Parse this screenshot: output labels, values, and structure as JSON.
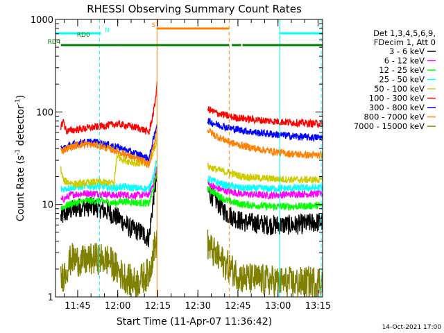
{
  "chart_data": {
    "type": "line",
    "title": "RHESSI Observing Summary Count Rates",
    "xlabel": "Start Time (11-Apr-07 11:36:42)",
    "ylabel": "Count Rate (s⁻¹ detector⁻¹)",
    "ylabel_parts": [
      "Count Rate (s",
      "-1",
      " detector",
      "-1",
      ")"
    ],
    "yscale": "log",
    "ylim": [
      1,
      1000
    ],
    "xlim_minutes": [
      0,
      100
    ],
    "y_ticks": [
      {
        "value": 1,
        "label": "1"
      },
      {
        "value": 10,
        "label": "10"
      },
      {
        "value": 100,
        "label": "100"
      },
      {
        "value": 1000,
        "label": "1000"
      }
    ],
    "x_ticks": [
      {
        "minute": 8.3,
        "label": "11:45"
      },
      {
        "minute": 23.3,
        "label": "12:00"
      },
      {
        "minute": 38.3,
        "label": "12:15"
      },
      {
        "minute": 53.3,
        "label": "12:30"
      },
      {
        "minute": 68.3,
        "label": "12:45"
      },
      {
        "minute": 83.3,
        "label": "13:00"
      },
      {
        "minute": 98.3,
        "label": "13:15"
      }
    ],
    "legend_header": [
      "Det 1,3,4,5,6,9,",
      "FDecim 1, Att 0"
    ],
    "segments": [
      [
        0,
        38
      ],
      [
        57,
        100
      ]
    ],
    "series": [
      {
        "name": "3 - 6 keV",
        "color": "#000000",
        "points": [
          [
            2,
            7.2
          ],
          [
            5,
            8.5
          ],
          [
            10,
            9.5
          ],
          [
            15,
            9.4
          ],
          [
            20,
            8.2
          ],
          [
            24,
            7
          ],
          [
            28,
            5.5
          ],
          [
            32,
            5
          ],
          [
            35,
            4.3
          ],
          [
            37,
            14
          ],
          [
            38,
            20
          ],
          [
            57,
            14
          ],
          [
            60,
            11
          ],
          [
            64,
            8
          ],
          [
            70,
            6.5
          ],
          [
            80,
            6
          ],
          [
            90,
            6
          ],
          [
            100,
            6.5
          ]
        ]
      },
      {
        "name": "6 - 12 keV",
        "color": "#ff00ff",
        "points": [
          [
            2,
            11
          ],
          [
            6,
            12.8
          ],
          [
            12,
            13.2
          ],
          [
            18,
            13
          ],
          [
            22,
            12.5
          ],
          [
            25,
            12.8
          ],
          [
            30,
            12.5
          ],
          [
            35,
            12.8
          ],
          [
            37,
            18
          ],
          [
            38,
            26
          ],
          [
            57,
            17
          ],
          [
            60,
            15
          ],
          [
            64,
            14
          ],
          [
            70,
            13
          ],
          [
            80,
            12.5
          ],
          [
            90,
            13
          ],
          [
            100,
            13
          ]
        ]
      },
      {
        "name": "12 - 25 keV",
        "color": "#00ff00",
        "points": [
          [
            2,
            9.2
          ],
          [
            6,
            10.2
          ],
          [
            12,
            11
          ],
          [
            18,
            10.8
          ],
          [
            22,
            10.3
          ],
          [
            25,
            10.8
          ],
          [
            30,
            10.5
          ],
          [
            35,
            10.2
          ],
          [
            37,
            16
          ],
          [
            38,
            23
          ],
          [
            57,
            15
          ],
          [
            60,
            13
          ],
          [
            64,
            11
          ],
          [
            70,
            10
          ],
          [
            80,
            9.5
          ],
          [
            90,
            9.5
          ],
          [
            100,
            9.8
          ]
        ]
      },
      {
        "name": "25 - 50 keV",
        "color": "#00ffff",
        "points": [
          [
            2,
            14.5
          ],
          [
            6,
            15.3
          ],
          [
            12,
            15.8
          ],
          [
            18,
            15.6
          ],
          [
            22,
            15
          ],
          [
            25,
            15.5
          ],
          [
            30,
            15
          ],
          [
            35,
            14.8
          ],
          [
            37,
            22
          ],
          [
            38,
            30
          ],
          [
            57,
            19
          ],
          [
            60,
            17.5
          ],
          [
            64,
            16
          ],
          [
            70,
            15
          ],
          [
            80,
            14.8
          ],
          [
            90,
            15
          ],
          [
            100,
            15.2
          ]
        ]
      },
      {
        "name": "50 - 100 keV",
        "color": "#cccc00",
        "points": [
          [
            2,
            24
          ],
          [
            3,
            18
          ],
          [
            8,
            16.5
          ],
          [
            15,
            17.5
          ],
          [
            22,
            17
          ],
          [
            23,
            34
          ],
          [
            26,
            30
          ],
          [
            30,
            28
          ],
          [
            35,
            27
          ],
          [
            37,
            40
          ],
          [
            38,
            50
          ],
          [
            57,
            26
          ],
          [
            60,
            24
          ],
          [
            65,
            22
          ],
          [
            70,
            20
          ],
          [
            80,
            19
          ],
          [
            90,
            18.5
          ],
          [
            100,
            18.5
          ]
        ]
      },
      {
        "name": "100 - 300 keV",
        "color": "#ff0000",
        "points": [
          [
            2,
            70
          ],
          [
            3,
            80
          ],
          [
            4,
            62
          ],
          [
            23,
            74
          ],
          [
            28,
            70
          ],
          [
            32,
            66
          ],
          [
            35,
            60
          ],
          [
            37,
            110
          ],
          [
            38,
            195
          ],
          [
            57,
            108
          ],
          [
            60,
            98
          ],
          [
            66,
            88
          ],
          [
            75,
            82
          ],
          [
            85,
            78
          ],
          [
            95,
            75
          ],
          [
            100,
            75
          ]
        ]
      },
      {
        "name": "300 - 800 keV",
        "color": "#0000ff",
        "points": [
          [
            2,
            40
          ],
          [
            6,
            44
          ],
          [
            10,
            47
          ],
          [
            15,
            47
          ],
          [
            20,
            44
          ],
          [
            24,
            41
          ],
          [
            28,
            37
          ],
          [
            32,
            34
          ],
          [
            35,
            31
          ],
          [
            37,
            55
          ],
          [
            38,
            75
          ],
          [
            57,
            80
          ],
          [
            60,
            74
          ],
          [
            66,
            66
          ],
          [
            75,
            60
          ],
          [
            85,
            56
          ],
          [
            95,
            53
          ],
          [
            100,
            53
          ]
        ]
      },
      {
        "name": "800 - 7000 keV",
        "color": "#ff8000",
        "points": [
          [
            2,
            38
          ],
          [
            6,
            42
          ],
          [
            10,
            45
          ],
          [
            15,
            44
          ],
          [
            20,
            40
          ],
          [
            24,
            37
          ],
          [
            28,
            33
          ],
          [
            32,
            30
          ],
          [
            35,
            27
          ],
          [
            37,
            45
          ],
          [
            38,
            65
          ],
          [
            57,
            64
          ],
          [
            60,
            55
          ],
          [
            66,
            46
          ],
          [
            75,
            40
          ],
          [
            85,
            36
          ],
          [
            95,
            34
          ],
          [
            100,
            34
          ]
        ]
      },
      {
        "name": "7000 - 15000 keV",
        "color": "#808000",
        "points": [
          [
            2,
            1.5
          ],
          [
            6,
            2.6
          ],
          [
            10,
            2.4
          ],
          [
            15,
            2.6
          ],
          [
            20,
            2.5
          ],
          [
            25,
            1.7
          ],
          [
            30,
            1.4
          ],
          [
            35,
            1.8
          ],
          [
            37,
            3.5
          ],
          [
            38,
            4
          ],
          [
            57,
            3.7
          ],
          [
            60,
            2.8
          ],
          [
            64,
            2.2
          ],
          [
            70,
            1.6
          ],
          [
            80,
            1.5
          ],
          [
            90,
            1.4
          ],
          [
            100,
            1.5
          ]
        ]
      }
    ],
    "annotations": {
      "bars": [
        {
          "label": "N",
          "color": "#00ffff",
          "segments": [
            [
              0,
              17
            ],
            [
              84,
              100
            ]
          ],
          "label_minute": 18.5,
          "level": 0
        },
        {
          "label": "RD0",
          "color": "#008000",
          "segments": [],
          "label_minute": 8,
          "level": 1
        },
        {
          "label": "RD4",
          "color": "#008000",
          "segments": [
            [
              2,
              23.5
            ],
            [
              23.5,
              65
            ],
            [
              66,
              69.5
            ],
            [
              70,
              100
            ]
          ],
          "label_minute": -3,
          "level": 2
        },
        {
          "label": "S",
          "color": "#ff8000",
          "segments": [
            [
              38,
              65
            ]
          ],
          "label_minute": 36,
          "level": -1
        }
      ],
      "vlines": [
        {
          "minute": 0,
          "color": "#00ffff",
          "dash": false
        },
        {
          "minute": 16.5,
          "color": "#00ffff",
          "dash": true
        },
        {
          "minute": 38,
          "color": "#ff8000",
          "dash": false
        },
        {
          "minute": 65,
          "color": "#ff8000",
          "dash": true
        },
        {
          "minute": 84,
          "color": "#00ffff",
          "dash": false
        },
        {
          "minute": 99.5,
          "color": "#00ffff",
          "dash": true
        }
      ]
    },
    "footer": "14-Oct-2021 17:00"
  }
}
